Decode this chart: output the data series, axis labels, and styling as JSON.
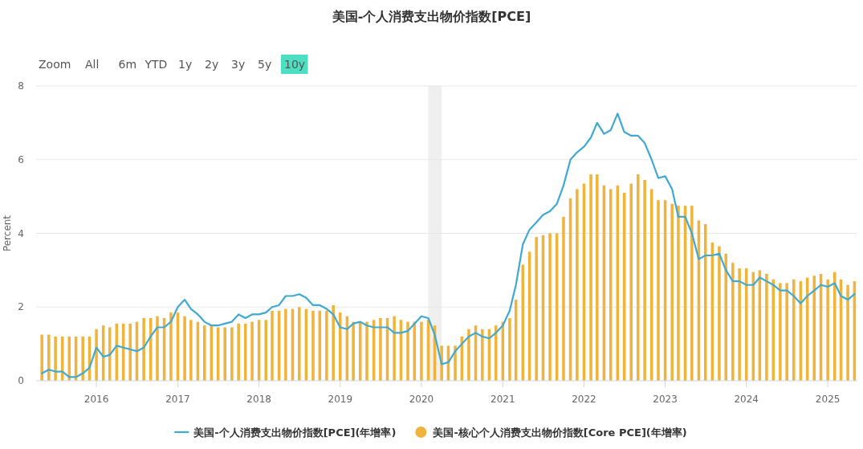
{
  "chart_data": {
    "type": "bar",
    "title": "美国-个人消费支出物价指数[PCE]",
    "ylabel": "Percent",
    "annotations": [
      "Zoom",
      "All",
      "6m",
      "YTD",
      "1y",
      "2y",
      "3y",
      "5y",
      "10y"
    ],
    "x": [
      "2015-05",
      "2015-06",
      "2015-07",
      "2015-08",
      "2015-09",
      "2015-10",
      "2015-11",
      "2015-12",
      "2016-01",
      "2016-02",
      "2016-03",
      "2016-04",
      "2016-05",
      "2016-06",
      "2016-07",
      "2016-08",
      "2016-09",
      "2016-10",
      "2016-11",
      "2016-12",
      "2017-01",
      "2017-02",
      "2017-03",
      "2017-04",
      "2017-05",
      "2017-06",
      "2017-07",
      "2017-08",
      "2017-09",
      "2017-10",
      "2017-11",
      "2017-12",
      "2018-01",
      "2018-02",
      "2018-03",
      "2018-04",
      "2018-05",
      "2018-06",
      "2018-07",
      "2018-08",
      "2018-09",
      "2018-10",
      "2018-11",
      "2018-12",
      "2019-01",
      "2019-02",
      "2019-03",
      "2019-04",
      "2019-05",
      "2019-06",
      "2019-07",
      "2019-08",
      "2019-09",
      "2019-10",
      "2019-11",
      "2019-12",
      "2020-01",
      "2020-02",
      "2020-03",
      "2020-04",
      "2020-05",
      "2020-06",
      "2020-07",
      "2020-08",
      "2020-09",
      "2020-10",
      "2020-11",
      "2020-12",
      "2021-01",
      "2021-02",
      "2021-03",
      "2021-04",
      "2021-05",
      "2021-06",
      "2021-07",
      "2021-08",
      "2021-09",
      "2021-10",
      "2021-11",
      "2021-12",
      "2022-01",
      "2022-02",
      "2022-03",
      "2022-04",
      "2022-05",
      "2022-06",
      "2022-07",
      "2022-08",
      "2022-09",
      "2022-10",
      "2022-11",
      "2022-12",
      "2023-01",
      "2023-02",
      "2023-03",
      "2023-04",
      "2023-05",
      "2023-06",
      "2023-07",
      "2023-08",
      "2023-09",
      "2023-10",
      "2023-11",
      "2023-12",
      "2024-01",
      "2024-02",
      "2024-03",
      "2024-04",
      "2024-05",
      "2024-06",
      "2024-07",
      "2024-08",
      "2024-09",
      "2024-10",
      "2024-11",
      "2024-12",
      "2025-01",
      "2025-02",
      "2025-03",
      "2025-04",
      "2025-05"
    ],
    "series": [
      {
        "name": "美国-核心个人消费支出物价指数[Core PCE](年增率)",
        "color": "#f0b43c",
        "values": [
          1.25,
          1.25,
          1.2,
          1.2,
          1.2,
          1.2,
          1.2,
          1.2,
          1.4,
          1.5,
          1.45,
          1.55,
          1.55,
          1.55,
          1.6,
          1.7,
          1.7,
          1.75,
          1.7,
          1.85,
          1.85,
          1.75,
          1.65,
          1.6,
          1.5,
          1.5,
          1.45,
          1.45,
          1.45,
          1.55,
          1.55,
          1.6,
          1.65,
          1.65,
          1.9,
          1.9,
          1.95,
          1.95,
          2.0,
          1.95,
          1.9,
          1.9,
          1.9,
          2.05,
          1.85,
          1.75,
          1.6,
          1.6,
          1.6,
          1.65,
          1.7,
          1.7,
          1.75,
          1.65,
          1.6,
          1.6,
          1.6,
          1.65,
          1.5,
          0.95,
          0.95,
          0.95,
          1.2,
          1.4,
          1.5,
          1.4,
          1.4,
          1.5,
          1.6,
          1.7,
          2.2,
          3.15,
          3.5,
          3.9,
          3.95,
          4.0,
          4.0,
          4.45,
          4.95,
          5.2,
          5.35,
          5.6,
          5.6,
          5.3,
          5.2,
          5.3,
          5.1,
          5.35,
          5.6,
          5.45,
          5.2,
          4.9,
          4.9,
          4.8,
          4.75,
          4.75,
          4.75,
          4.35,
          4.25,
          3.75,
          3.65,
          3.45,
          3.2,
          3.05,
          3.05,
          2.95,
          3.0,
          2.9,
          2.75,
          2.65,
          2.65,
          2.75,
          2.7,
          2.8,
          2.85,
          2.9,
          2.75,
          2.95,
          2.75,
          2.6,
          2.7
        ]
      },
      {
        "name": "美国-个人消费支出物价指数[PCE](年增率)",
        "type": "line",
        "color": "#40a9d2",
        "values": [
          0.2,
          0.3,
          0.25,
          0.25,
          0.1,
          0.1,
          0.2,
          0.35,
          0.9,
          0.65,
          0.7,
          0.95,
          0.9,
          0.85,
          0.8,
          0.9,
          1.2,
          1.45,
          1.45,
          1.6,
          2.0,
          2.2,
          1.95,
          1.8,
          1.6,
          1.5,
          1.5,
          1.55,
          1.6,
          1.8,
          1.7,
          1.8,
          1.8,
          1.85,
          2.0,
          2.05,
          2.3,
          2.3,
          2.35,
          2.25,
          2.05,
          2.05,
          1.95,
          1.8,
          1.45,
          1.4,
          1.55,
          1.6,
          1.5,
          1.45,
          1.45,
          1.45,
          1.3,
          1.3,
          1.35,
          1.55,
          1.75,
          1.7,
          1.25,
          0.45,
          0.5,
          0.8,
          1.0,
          1.2,
          1.3,
          1.2,
          1.15,
          1.3,
          1.5,
          1.9,
          2.6,
          3.7,
          4.1,
          4.3,
          4.5,
          4.6,
          4.8,
          5.3,
          6.0,
          6.2,
          6.35,
          6.6,
          7.0,
          6.7,
          6.8,
          7.25,
          6.75,
          6.65,
          6.65,
          6.45,
          6.0,
          5.5,
          5.55,
          5.2,
          4.45,
          4.45,
          4.0,
          3.3,
          3.4,
          3.4,
          3.45,
          3.0,
          2.7,
          2.7,
          2.6,
          2.6,
          2.8,
          2.7,
          2.6,
          2.45,
          2.45,
          2.3,
          2.1,
          2.3,
          2.45,
          2.6,
          2.55,
          2.65,
          2.3,
          2.2,
          2.35
        ]
      }
    ],
    "xlim": [
      "2015-04-05",
      "2025-05-14"
    ],
    "xticks": [
      "2016",
      "2017",
      "2018",
      "2019",
      "2020",
      "2021",
      "2022",
      "2023",
      "2024",
      "2025"
    ],
    "ylim": [
      0,
      8
    ],
    "yticks": [
      0,
      2,
      4,
      6,
      8
    ],
    "bands": [
      {
        "axis": "x",
        "from": "2020-02",
        "to": "2020-04",
        "color": "#efefef"
      }
    ],
    "grid": "y",
    "legend": "bottom"
  }
}
